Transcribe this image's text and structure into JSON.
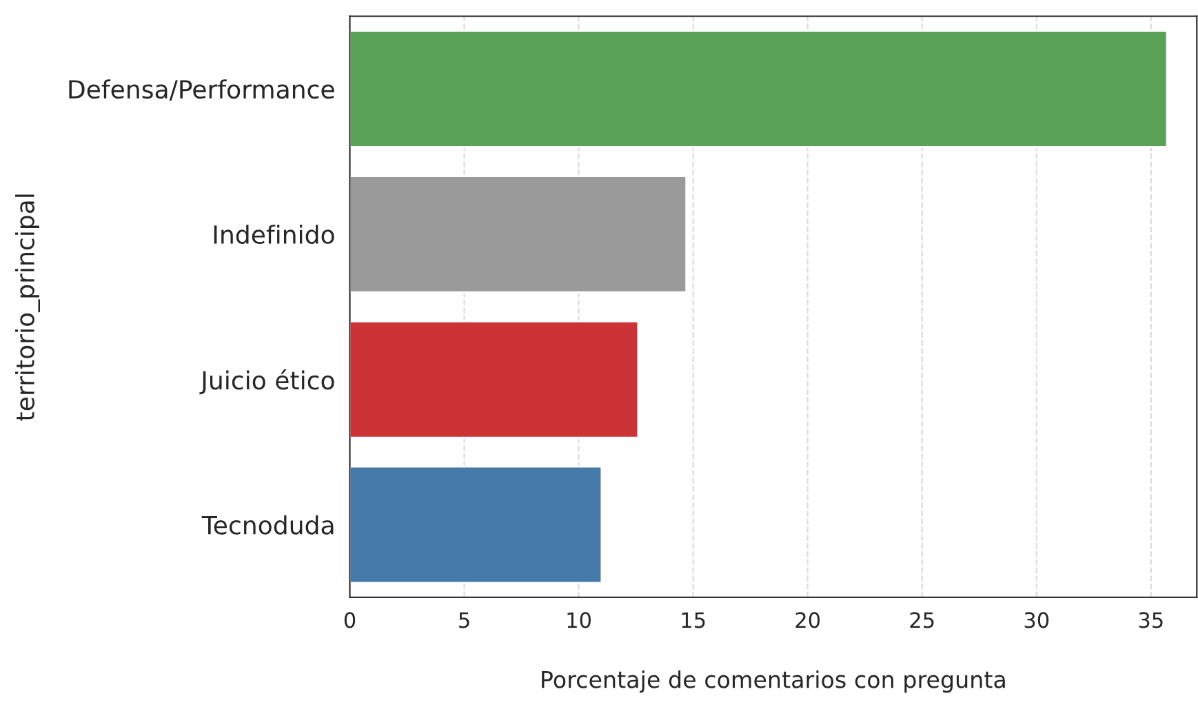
{
  "chart_data": {
    "type": "bar",
    "orientation": "horizontal",
    "categories": [
      "Defensa/Performance",
      "Indefinido",
      "Juicio ético",
      "Tecnoduda"
    ],
    "values": [
      35.7,
      14.7,
      12.6,
      11.0
    ],
    "colors": [
      "#59a257",
      "#9a9a9a",
      "#cc3336",
      "#4479a9"
    ],
    "xlabel": "Porcentaje de comentarios con pregunta",
    "ylabel": "territorio_principal",
    "xlim": [
      0,
      37
    ],
    "xticks": [
      0,
      5,
      10,
      15,
      20,
      25,
      30,
      35
    ],
    "grid": "x"
  }
}
